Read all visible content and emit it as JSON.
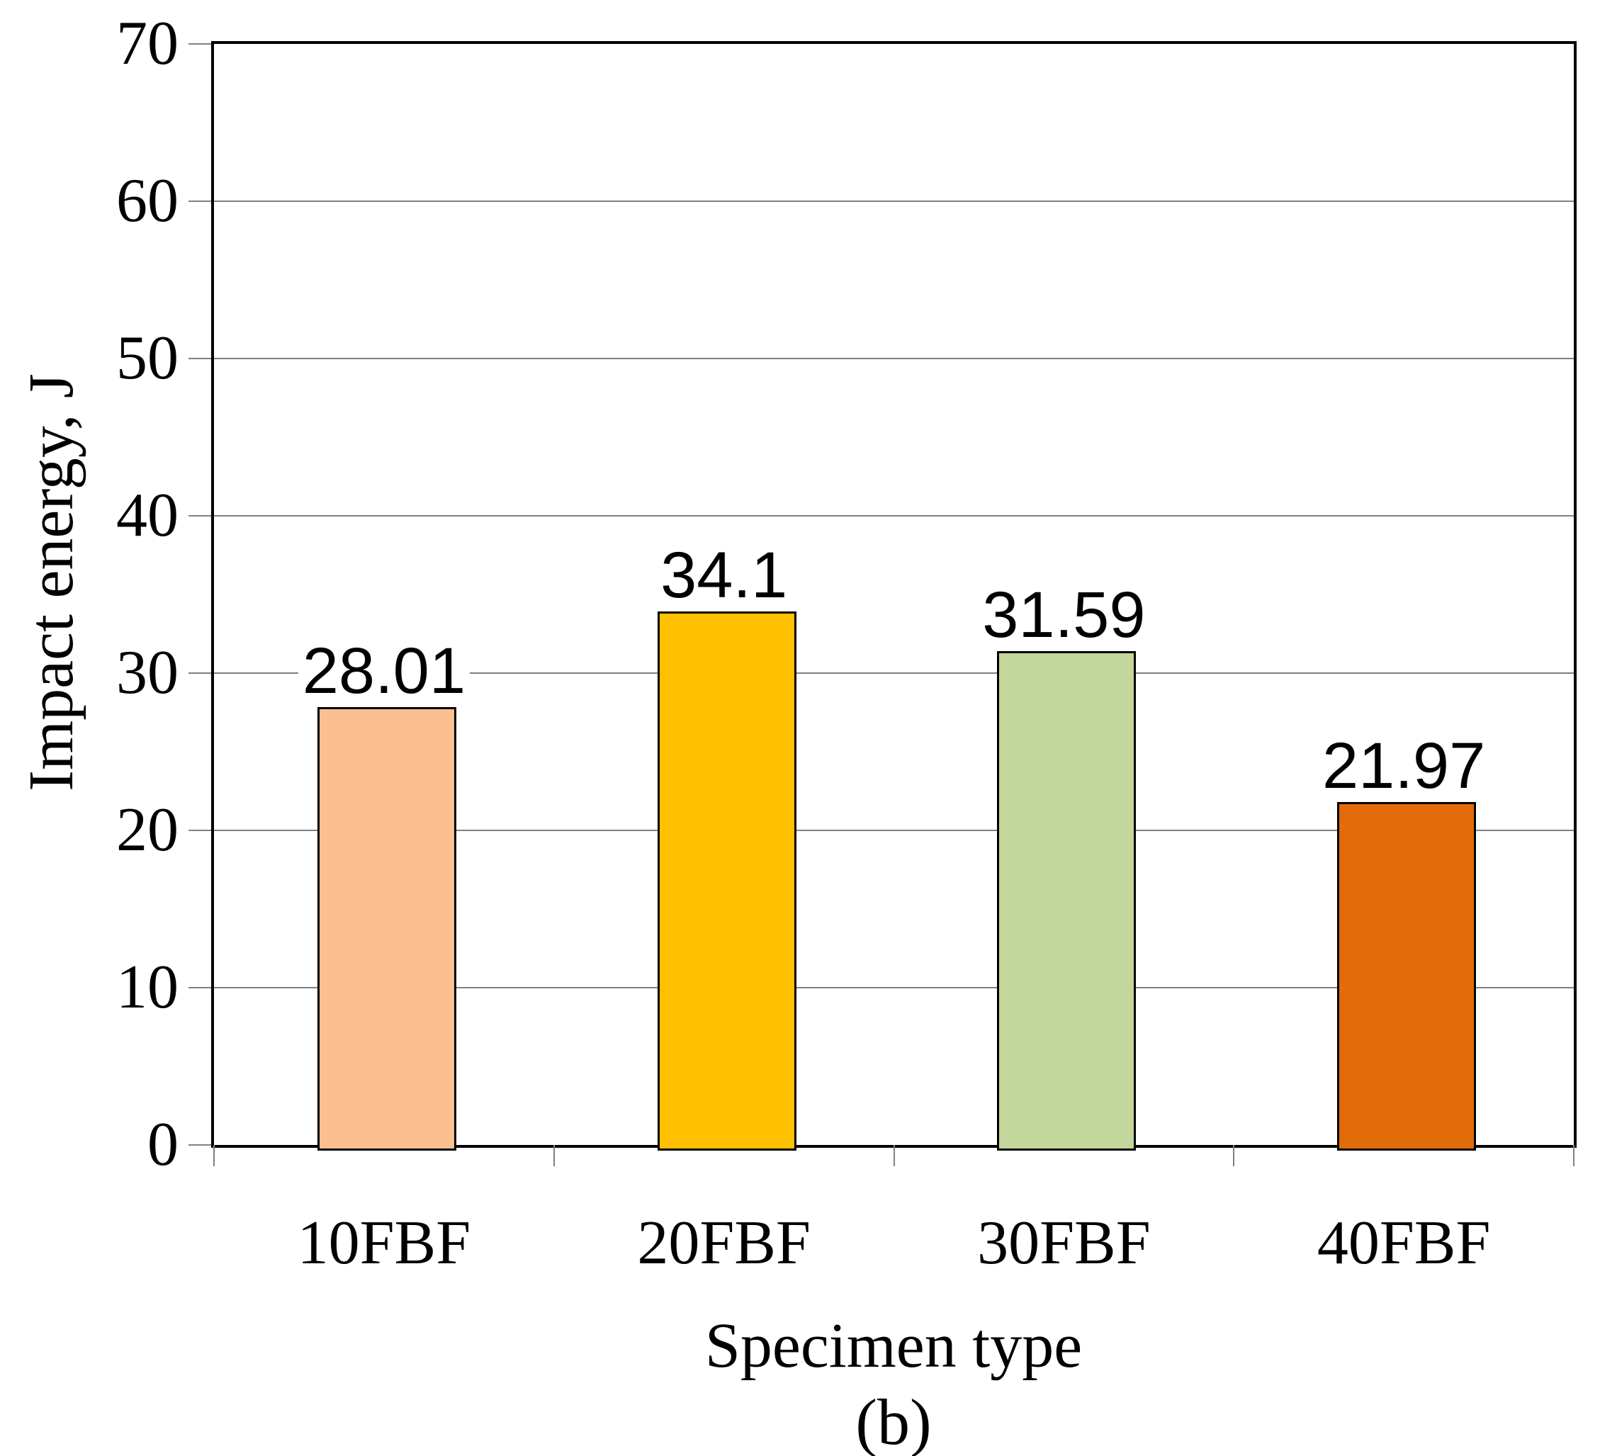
{
  "figure": {
    "caption": "(b)"
  },
  "chart_data": {
    "type": "bar",
    "title": "",
    "categories": [
      "10FBF",
      "20FBF",
      "30FBF",
      "40FBF"
    ],
    "values": [
      28.01,
      34.1,
      31.59,
      21.97
    ],
    "data_labels": [
      "28.01",
      "34.1",
      "31.59",
      "21.97"
    ],
    "xlabel": "Specimen type",
    "ylabel": "Impact energy, J",
    "ylim": [
      0,
      70
    ],
    "yticks": [
      0,
      10,
      20,
      30,
      40,
      50,
      60,
      70
    ],
    "grid": "horizontal gridlines on",
    "legend": "none",
    "colors": {
      "bar_fills": [
        "#FAC090",
        "#FFC000",
        "#C3D69B",
        "#E36C0A"
      ],
      "bar_border": "#000000",
      "gridline": "#808080",
      "tick": "#808080",
      "plot_border": "#000000",
      "text": "#000000"
    }
  }
}
